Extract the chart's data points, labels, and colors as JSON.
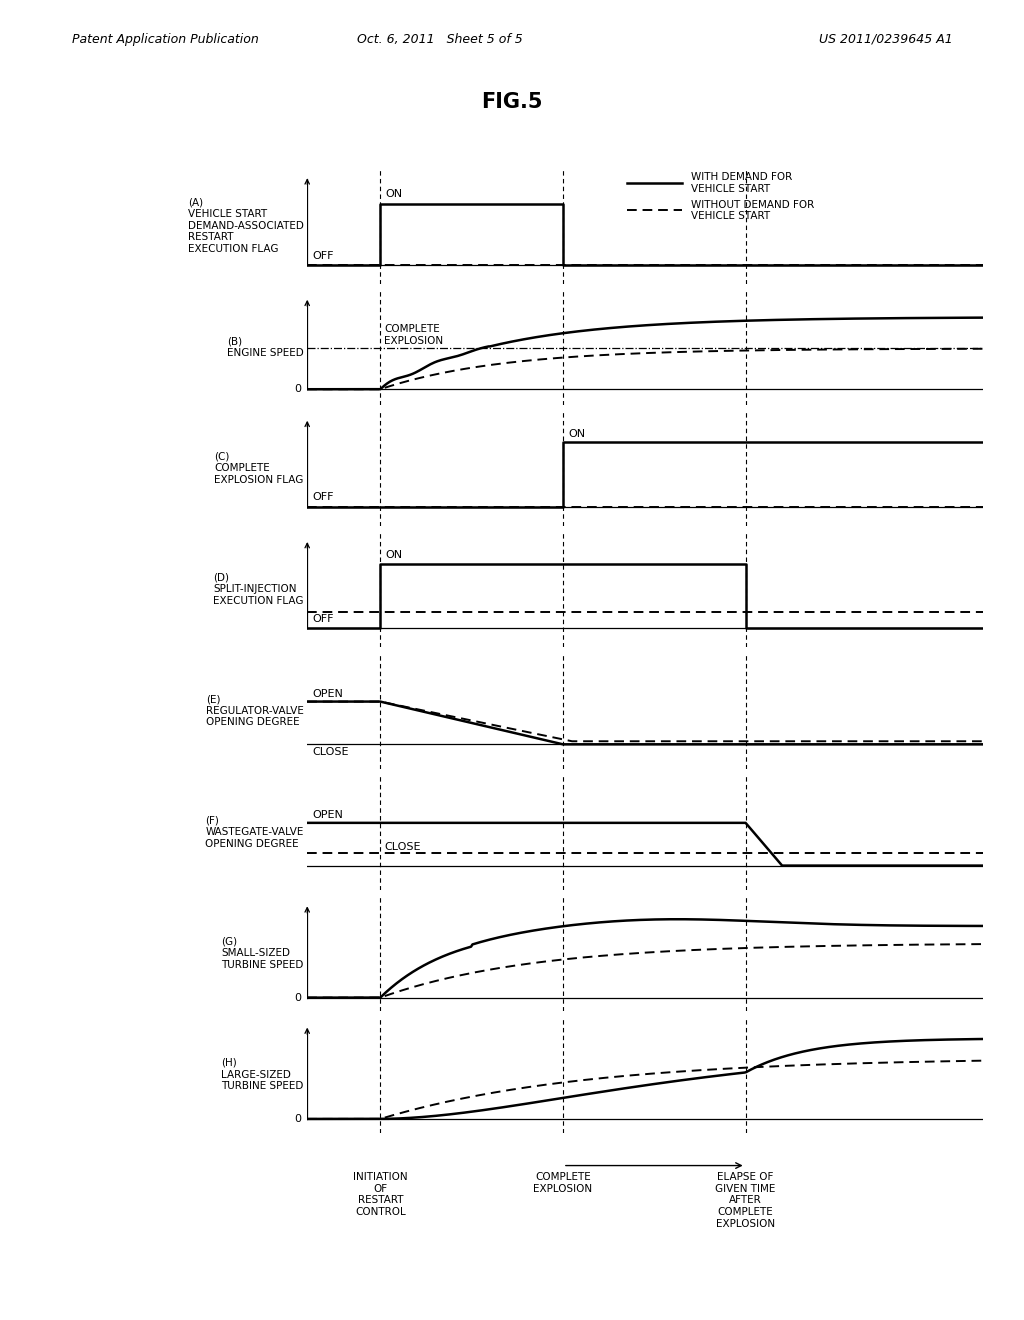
{
  "title": "FIG.5",
  "header_left": "Patent Application Publication",
  "header_mid": "Oct. 6, 2011   Sheet 5 of 5",
  "header_right": "US 2011/0239645 A1",
  "bg_color": "#ffffff",
  "t_min": 0.6,
  "t_max": 4.3,
  "vlines": [
    1.0,
    2.0,
    3.0
  ],
  "panel_labels": [
    "(A)\nVEHICLE START\nDEMAND-ASSOCIATED\nRESTART\nEXECUTION FLAG",
    "(B)\nENGINE SPEED",
    "(C)\nCOMPLETE\nEXPLOSION FLAG",
    "(D)\nSPLIT-INJECTION\nEXECUTION FLAG",
    "(E)\nREGULATOR-VALVE\nOPENING DEGREE",
    "(F)\nWASTEGATE-VALVE\nOPENING DEGREE",
    "(G)\nSMALL-SIZED\nTURBINE SPEED",
    "(H)\nLARGE-SIZED\nTURBINE SPEED"
  ],
  "bottom_labels": [
    {
      "x": 1.0,
      "text": "INITIATION\nOF\nRESTART\nCONTROL"
    },
    {
      "x": 2.0,
      "text": "COMPLETE\nEXPLOSION"
    },
    {
      "x": 3.0,
      "text": "ELAPSE OF\nGIVEN TIME\nAFTER\nCOMPLETE\nEXPLOSION"
    }
  ]
}
